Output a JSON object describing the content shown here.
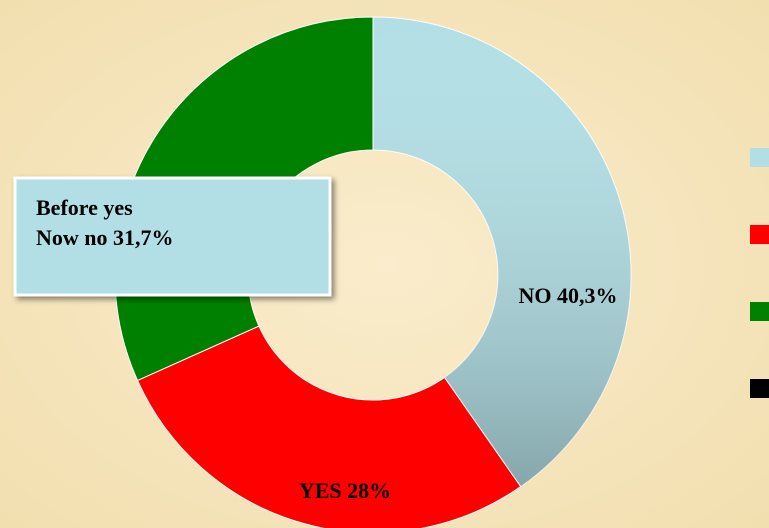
{
  "chart_data": {
    "type": "donut",
    "values": [
      40.3,
      28,
      31.7
    ],
    "value_labels": [
      "NO 40,3%",
      "YES 28%",
      [
        "Before yes",
        "Now no 31,7%"
      ]
    ],
    "colors": [
      "#b2dfe5",
      "#ff0000",
      "#008000"
    ],
    "legend_colors": [
      "#b2dfe5",
      "#ff0000",
      "#008000",
      "#000000"
    ]
  }
}
